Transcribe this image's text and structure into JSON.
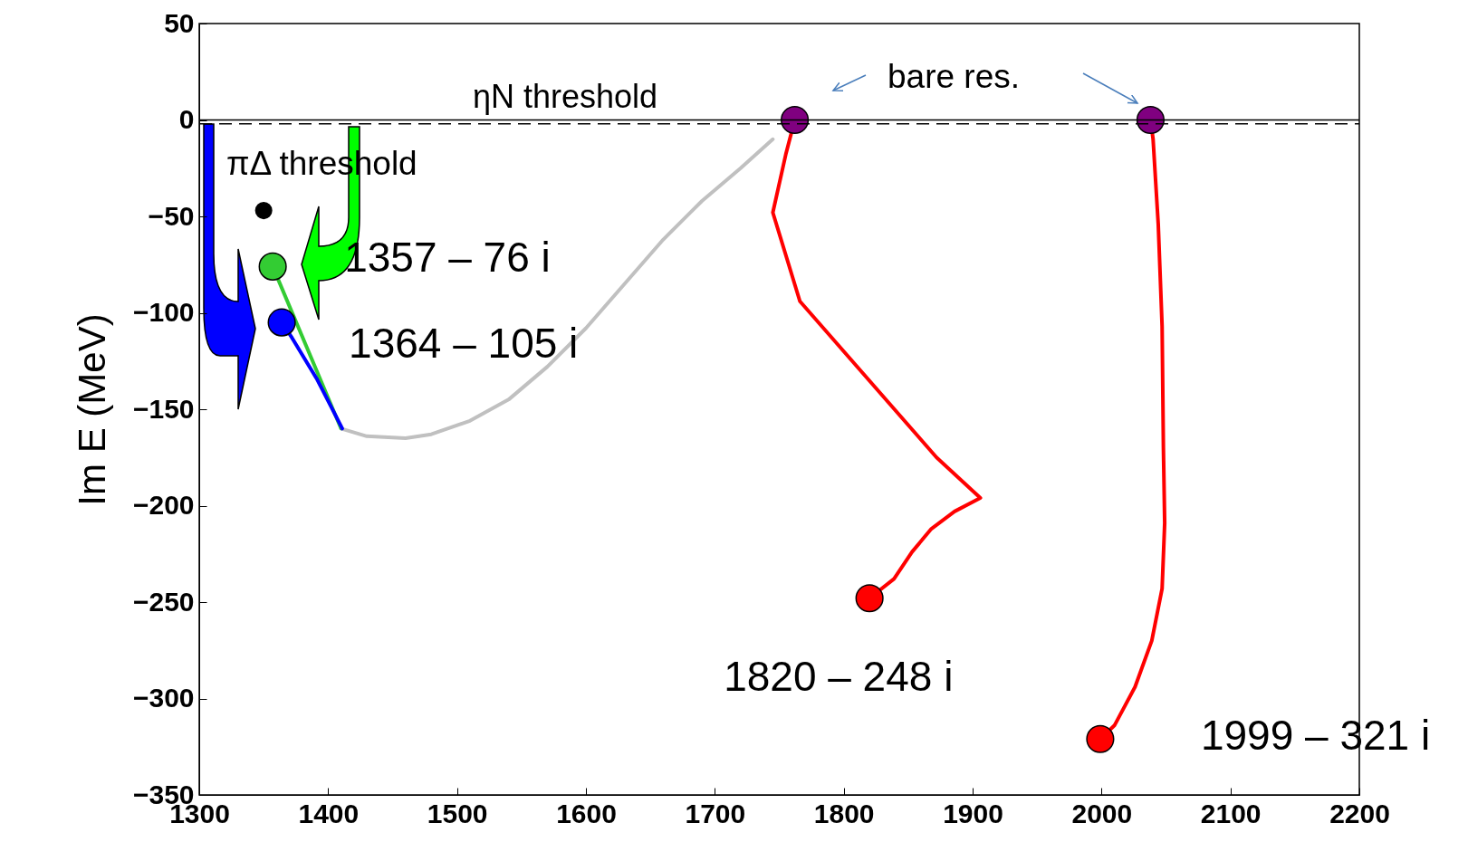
{
  "chart_data": {
    "type": "line",
    "ylabel": "Im E (MeV)",
    "xlim": [
      1300,
      2200
    ],
    "ylim": [
      -350,
      50
    ],
    "xticks": [
      1300,
      1400,
      1500,
      1600,
      1700,
      1800,
      1900,
      2000,
      2100,
      2200
    ],
    "yticks": [
      -350,
      -300,
      -250,
      -200,
      -150,
      -100,
      -50,
      0,
      50
    ],
    "grid": false,
    "series": [
      {
        "type": "line",
        "color": "#c0c0c0",
        "x": [
          1410,
          1430,
          1460,
          1480,
          1510,
          1540,
          1570,
          1600,
          1630,
          1660,
          1690,
          1720,
          1745
        ],
        "values": [
          -160,
          -164,
          -165,
          -163,
          -156,
          -145,
          -128,
          -108,
          -85,
          -62,
          -42,
          -25,
          -10
        ]
      },
      {
        "type": "line",
        "color": "#33cc33",
        "x": [
          1410,
          1357
        ],
        "values": [
          -160,
          -76
        ]
      },
      {
        "type": "line",
        "color": "#0000ff",
        "x": [
          1411,
          1391,
          1372,
          1364
        ],
        "values": [
          -160,
          -134,
          -113,
          -105
        ]
      },
      {
        "type": "line",
        "color": "#ff0000",
        "x": [
          1762,
          1755,
          1745,
          1766,
          1872,
          1906,
          1886,
          1868,
          1853,
          1839,
          1820
        ],
        "values": [
          0,
          -18,
          -48,
          -94,
          -175,
          -196,
          -203,
          -212,
          -224,
          -238,
          -248
        ]
      },
      {
        "type": "line",
        "color": "#ff0000",
        "x": [
          2038,
          2040,
          2044,
          2047,
          2048,
          2049,
          2047,
          2039,
          2026,
          2010,
          1999
        ],
        "values": [
          0,
          -10,
          -54,
          -107,
          -170,
          -209,
          -243,
          -270,
          -294,
          -314,
          -321
        ]
      },
      {
        "type": "bubble",
        "x": [
          1762,
          2038,
          1350,
          1357,
          1364,
          1820,
          1999
        ],
        "values": [
          0,
          0,
          -47,
          -76,
          -105,
          -248,
          -321
        ],
        "sizes": [
          1,
          1,
          0.35,
          1,
          1,
          1,
          1
        ],
        "colors": [
          "#800080",
          "#800080",
          "#000000",
          "#33cc33",
          "#0000ff",
          "#ff0000",
          "#ff0000"
        ]
      }
    ],
    "ref_lines": [
      {
        "axis": "y",
        "value": 0,
        "line_style": "solid",
        "color": "#000000"
      },
      {
        "axis": "y",
        "value": -2,
        "label": "ηN threshold",
        "line_style": "dashed",
        "color": "#000000"
      }
    ],
    "annotations": [
      {
        "text": "1357 – 76 i",
        "x": 1357,
        "y": -76
      },
      {
        "text": "1364 – 105 i",
        "x": 1364,
        "y": -105
      },
      {
        "text": "1820 – 248 i",
        "x": 1820,
        "y": -248
      },
      {
        "text": "1999 – 321 i",
        "x": 1999,
        "y": -321
      },
      "bare res.",
      "πΔ threshold"
    ]
  }
}
